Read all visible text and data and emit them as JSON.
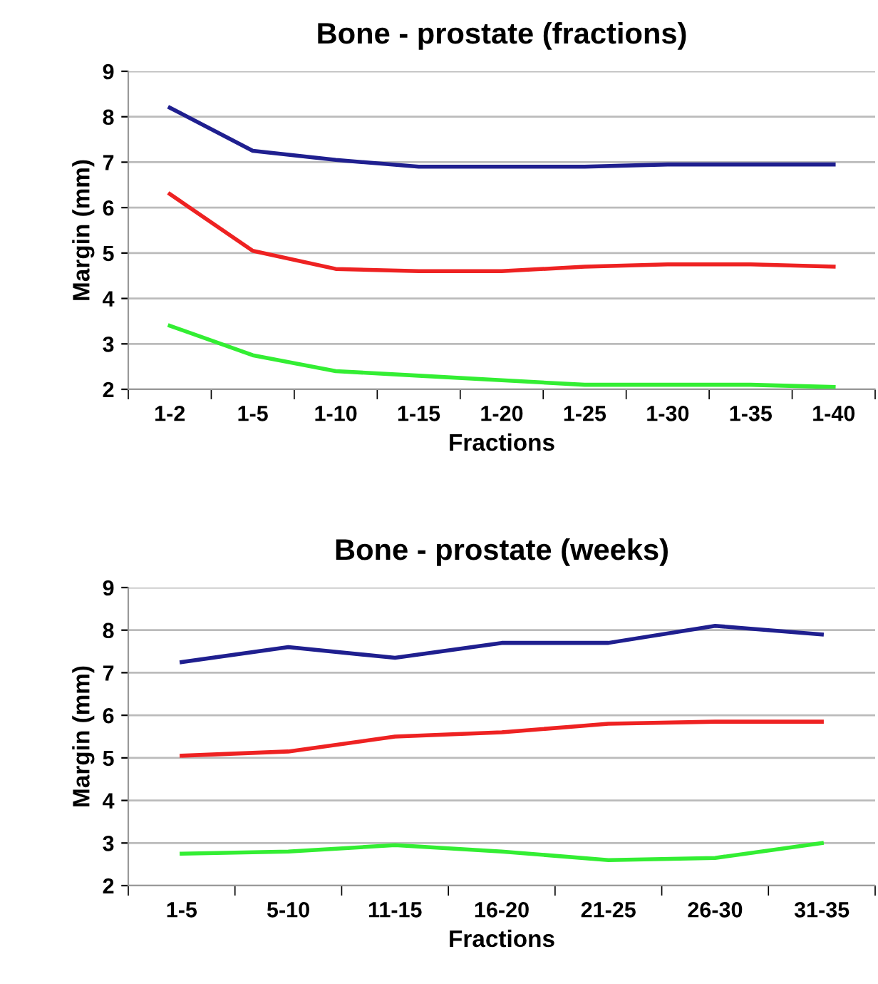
{
  "chart_data": [
    {
      "type": "line",
      "title": "Bone - prostate (fractions)",
      "xlabel": "Fractions",
      "ylabel": "Margin (mm)",
      "categories": [
        "1-2",
        "1-5",
        "1-10",
        "1-15",
        "1-20",
        "1-25",
        "1-30",
        "1-35",
        "1-40"
      ],
      "ylim": [
        2,
        9
      ],
      "yticks": [
        2,
        3,
        4,
        5,
        6,
        7,
        8,
        9
      ],
      "grid": "y",
      "series": [
        {
          "color": "#1f1f8f",
          "values": [
            8.2,
            7.25,
            7.05,
            6.9,
            6.9,
            6.9,
            6.95,
            6.95,
            6.95
          ]
        },
        {
          "color": "#ee2222",
          "values": [
            6.3,
            5.05,
            4.65,
            4.6,
            4.6,
            4.7,
            4.75,
            4.75,
            4.7
          ]
        },
        {
          "color": "#33ee33",
          "values": [
            3.4,
            2.75,
            2.4,
            2.3,
            2.2,
            2.1,
            2.1,
            2.1,
            2.05
          ]
        }
      ]
    },
    {
      "type": "line",
      "title": "Bone - prostate (weeks)",
      "xlabel": "Fractions",
      "ylabel": "Margin (mm)",
      "categories": [
        "1-5",
        "5-10",
        "11-15",
        "16-20",
        "21-25",
        "26-30",
        "31-35"
      ],
      "ylim": [
        2,
        9
      ],
      "yticks": [
        2,
        3,
        4,
        5,
        6,
        7,
        8,
        9
      ],
      "grid": "y",
      "series": [
        {
          "color": "#1f1f8f",
          "values": [
            7.25,
            7.6,
            7.35,
            7.7,
            7.7,
            8.1,
            7.9
          ]
        },
        {
          "color": "#ee2222",
          "values": [
            5.05,
            5.15,
            5.5,
            5.6,
            5.8,
            5.85,
            5.85
          ]
        },
        {
          "color": "#33ee33",
          "values": [
            2.75,
            2.8,
            2.95,
            2.8,
            2.6,
            2.65,
            3.0
          ]
        }
      ]
    }
  ]
}
